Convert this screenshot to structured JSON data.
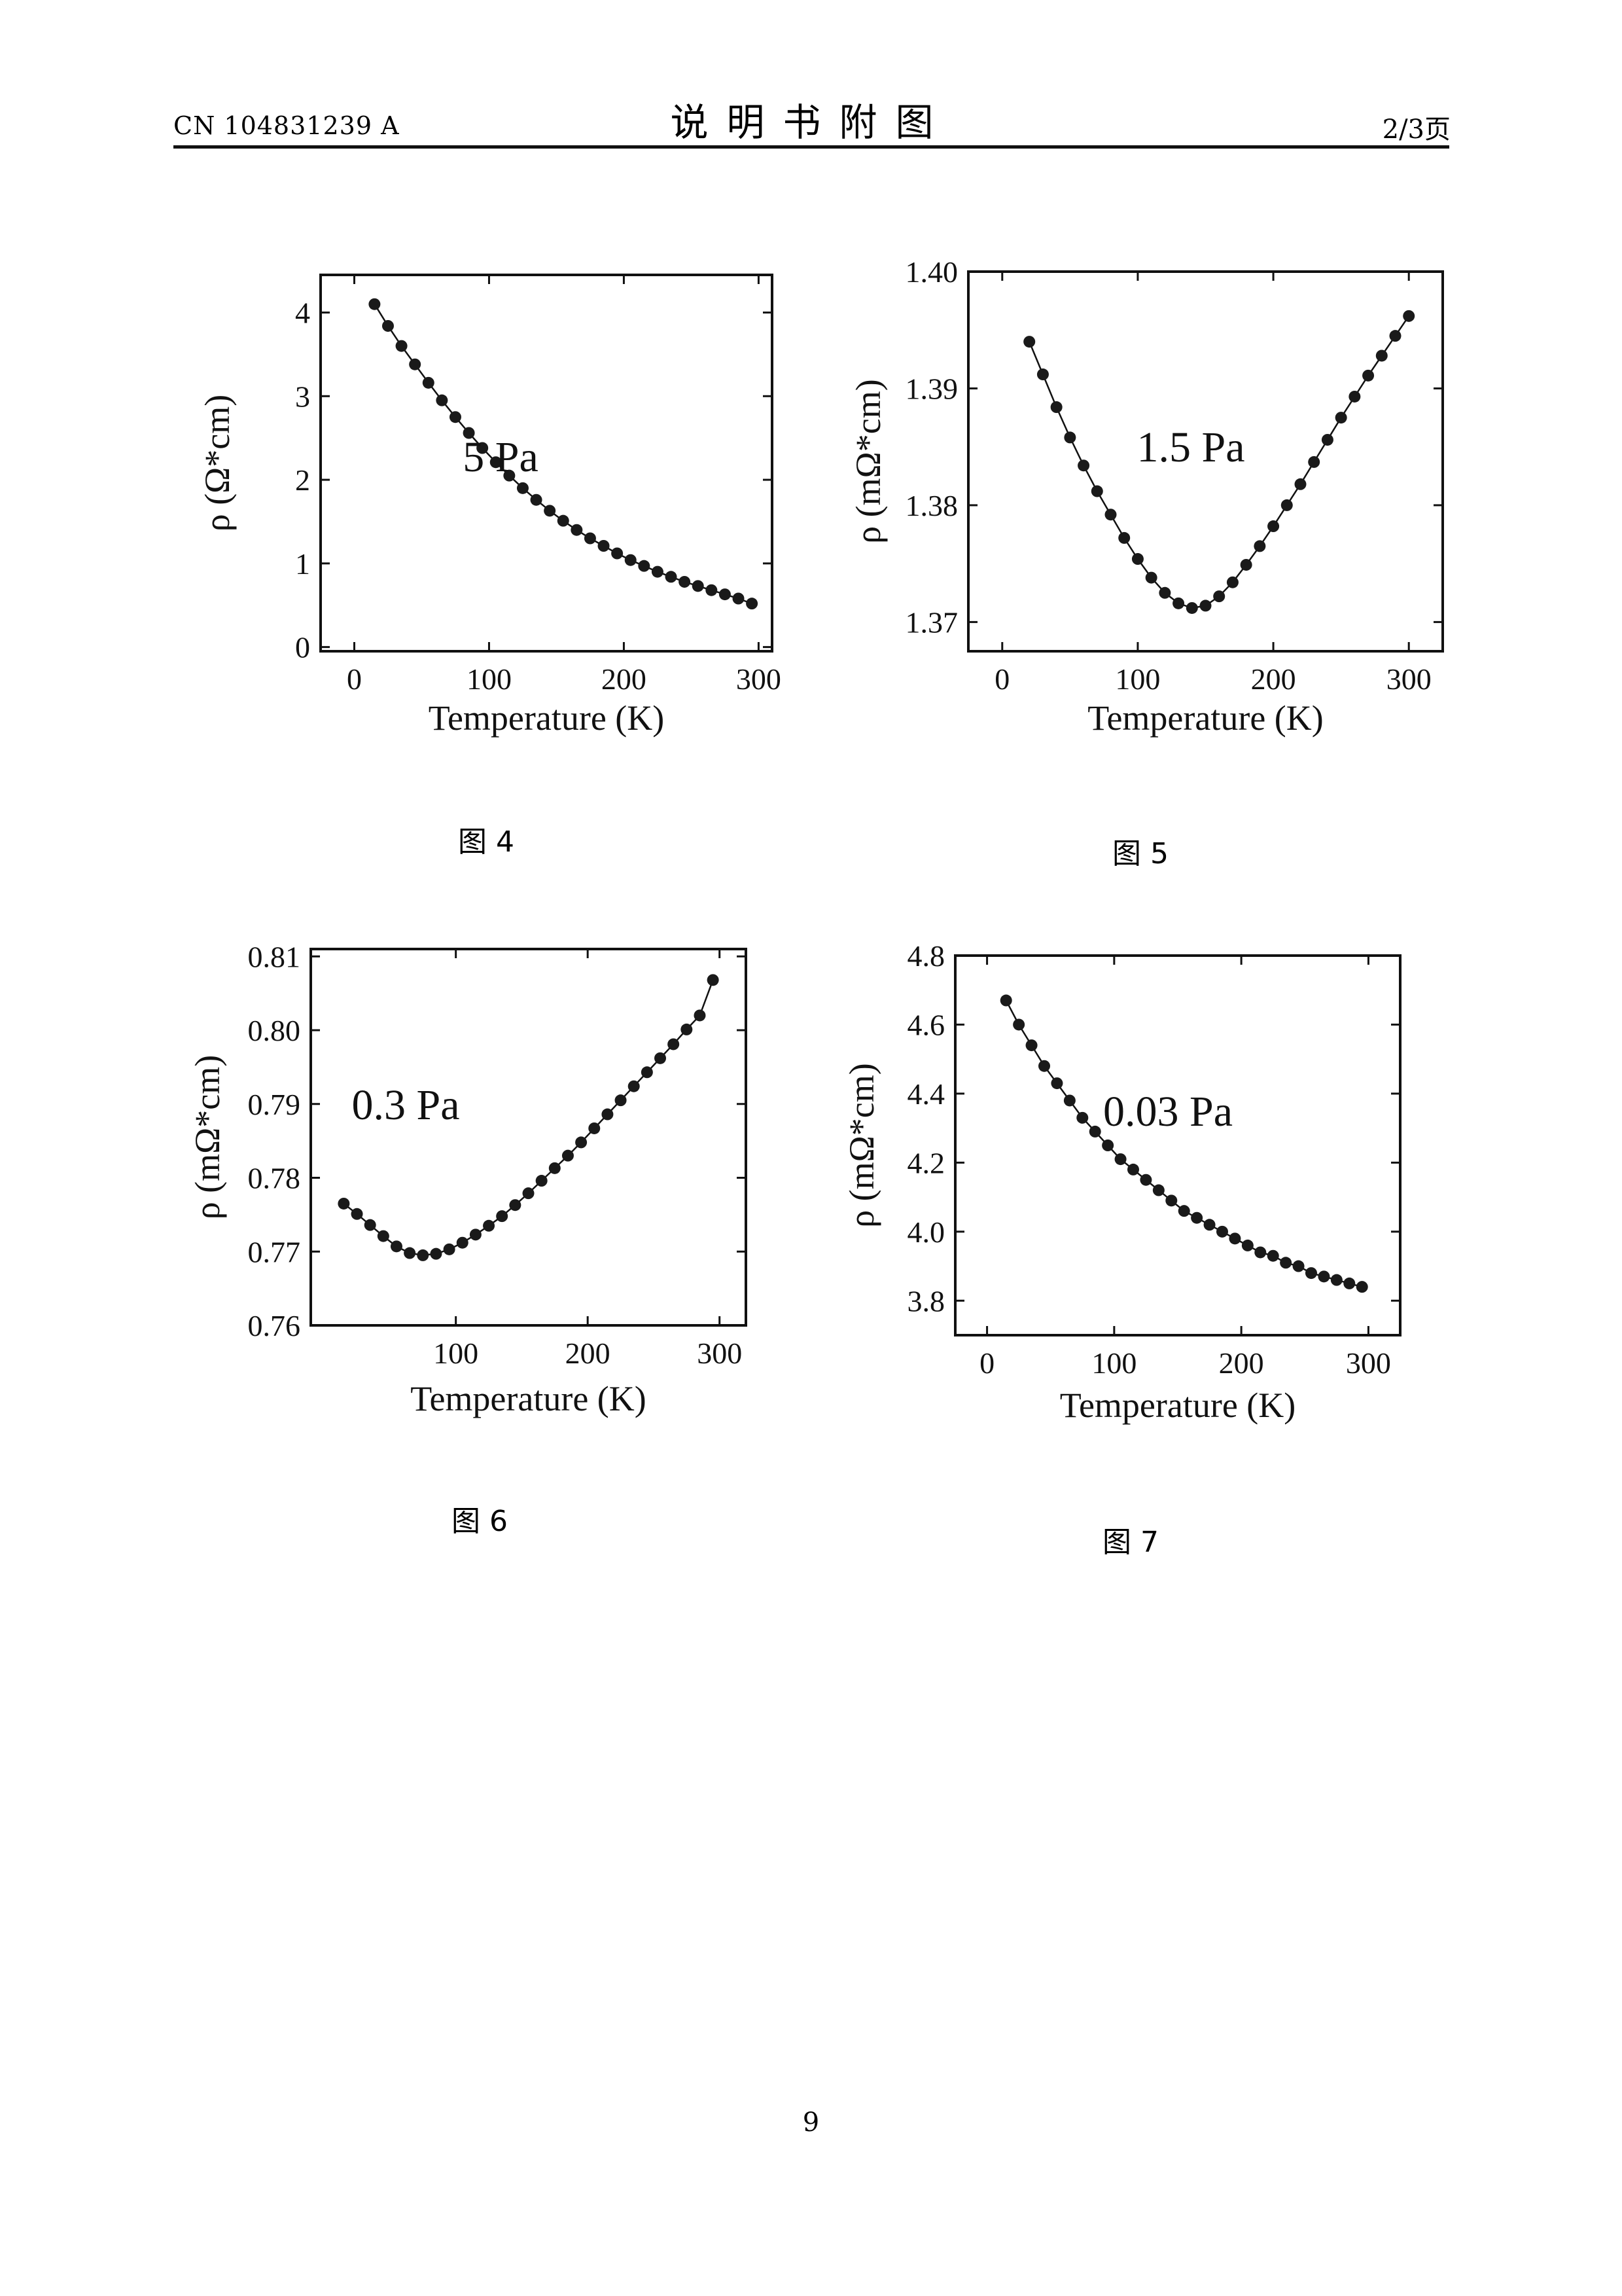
{
  "header": {
    "doc_id": "CN 104831239 A",
    "title": "说明书附图",
    "page_of": "2/3页"
  },
  "footer": {
    "page_number": "9"
  },
  "colors": {
    "ink": "#111111",
    "marker": "#1a1a1a"
  },
  "chart_data": [
    {
      "type": "scatter",
      "caption": "图 4",
      "annotation": "5 Pa",
      "xlabel": "Temperature (K)",
      "ylabel": "ρ (Ω*cm)",
      "xlim": [
        -25,
        310
      ],
      "ylim": [
        -0.05,
        4.45
      ],
      "xticks": [
        0,
        100,
        200,
        300
      ],
      "yticks": [
        0,
        1,
        2,
        3,
        4
      ],
      "ytick_labels": [
        "0",
        "1",
        "2",
        "3",
        "4"
      ],
      "x": [
        15,
        25,
        35,
        45,
        55,
        65,
        75,
        85,
        95,
        105,
        115,
        125,
        135,
        145,
        155,
        165,
        175,
        185,
        195,
        205,
        215,
        225,
        235,
        245,
        255,
        265,
        275,
        285,
        295
      ],
      "values": [
        4.1,
        3.84,
        3.6,
        3.38,
        3.16,
        2.95,
        2.75,
        2.56,
        2.38,
        2.21,
        2.05,
        1.9,
        1.76,
        1.63,
        1.51,
        1.4,
        1.3,
        1.21,
        1.12,
        1.04,
        0.97,
        0.9,
        0.84,
        0.78,
        0.73,
        0.68,
        0.63,
        0.58,
        0.52
      ]
    },
    {
      "type": "scatter",
      "caption": "图 5",
      "annotation": "1.5 Pa",
      "xlabel": "Temperature (K)",
      "ylabel": "ρ (mΩ*cm)",
      "xlim": [
        -25,
        325
      ],
      "ylim": [
        1.3675,
        1.4
      ],
      "xticks": [
        0,
        100,
        200,
        300
      ],
      "yticks": [
        1.37,
        1.38,
        1.39,
        1.4
      ],
      "ytick_labels": [
        "1.37",
        "1.38",
        "1.39",
        "1.40"
      ],
      "x": [
        20,
        30,
        40,
        50,
        60,
        70,
        80,
        90,
        100,
        110,
        120,
        130,
        140,
        150,
        160,
        170,
        180,
        190,
        200,
        210,
        220,
        230,
        240,
        250,
        260,
        270,
        280,
        290,
        300
      ],
      "values": [
        1.394,
        1.3912,
        1.3884,
        1.3858,
        1.3834,
        1.3812,
        1.3792,
        1.3772,
        1.3754,
        1.3738,
        1.3725,
        1.3716,
        1.3712,
        1.3714,
        1.3722,
        1.3734,
        1.3749,
        1.3765,
        1.3782,
        1.38,
        1.3818,
        1.3837,
        1.3856,
        1.3875,
        1.3893,
        1.3911,
        1.3928,
        1.3945,
        1.3962
      ]
    },
    {
      "type": "scatter",
      "caption": "图 6",
      "annotation": "0.3 Pa",
      "xlabel": "Temperature (K)",
      "ylabel": "ρ (mΩ*cm)",
      "xlim": [
        -10,
        320
      ],
      "ylim": [
        0.76,
        0.811
      ],
      "xticks": [
        100,
        200,
        300
      ],
      "yticks": [
        0.76,
        0.77,
        0.78,
        0.79,
        0.8,
        0.81
      ],
      "ytick_labels": [
        "0.76",
        "0.77",
        "0.78",
        "0.79",
        "0.80",
        "0.81"
      ],
      "x": [
        15,
        25,
        35,
        45,
        55,
        65,
        75,
        85,
        95,
        105,
        115,
        125,
        135,
        145,
        155,
        165,
        175,
        185,
        195,
        205,
        215,
        225,
        235,
        245,
        255,
        265,
        275,
        285,
        295
      ],
      "values": [
        0.7765,
        0.7751,
        0.7736,
        0.7721,
        0.7707,
        0.7698,
        0.7695,
        0.7697,
        0.7703,
        0.7712,
        0.7723,
        0.7735,
        0.7748,
        0.7763,
        0.7779,
        0.7796,
        0.7813,
        0.783,
        0.7848,
        0.7867,
        0.7886,
        0.7905,
        0.7924,
        0.7943,
        0.7962,
        0.7981,
        0.8001,
        0.802,
        0.8068
      ]
    },
    {
      "type": "scatter",
      "caption": "图 7",
      "annotation": "0.03 Pa",
      "xlabel": "Temperature (K)",
      "ylabel": "ρ (mΩ*cm)",
      "xlim": [
        -25,
        325
      ],
      "ylim": [
        3.7,
        4.8
      ],
      "xticks": [
        0,
        100,
        200,
        300
      ],
      "yticks": [
        3.8,
        4.0,
        4.2,
        4.4,
        4.6,
        4.8
      ],
      "ytick_labels": [
        "3.8",
        "4.0",
        "4.2",
        "4.4",
        "4.6",
        "4.8"
      ],
      "x": [
        15,
        25,
        35,
        45,
        55,
        65,
        75,
        85,
        95,
        105,
        115,
        125,
        135,
        145,
        155,
        165,
        175,
        185,
        195,
        205,
        215,
        225,
        235,
        245,
        255,
        265,
        275,
        285,
        295
      ],
      "values": [
        4.67,
        4.6,
        4.54,
        4.48,
        4.43,
        4.38,
        4.33,
        4.29,
        4.25,
        4.21,
        4.18,
        4.15,
        4.12,
        4.09,
        4.06,
        4.04,
        4.02,
        4.0,
        3.98,
        3.96,
        3.94,
        3.93,
        3.91,
        3.9,
        3.88,
        3.87,
        3.86,
        3.85,
        3.84
      ]
    }
  ]
}
